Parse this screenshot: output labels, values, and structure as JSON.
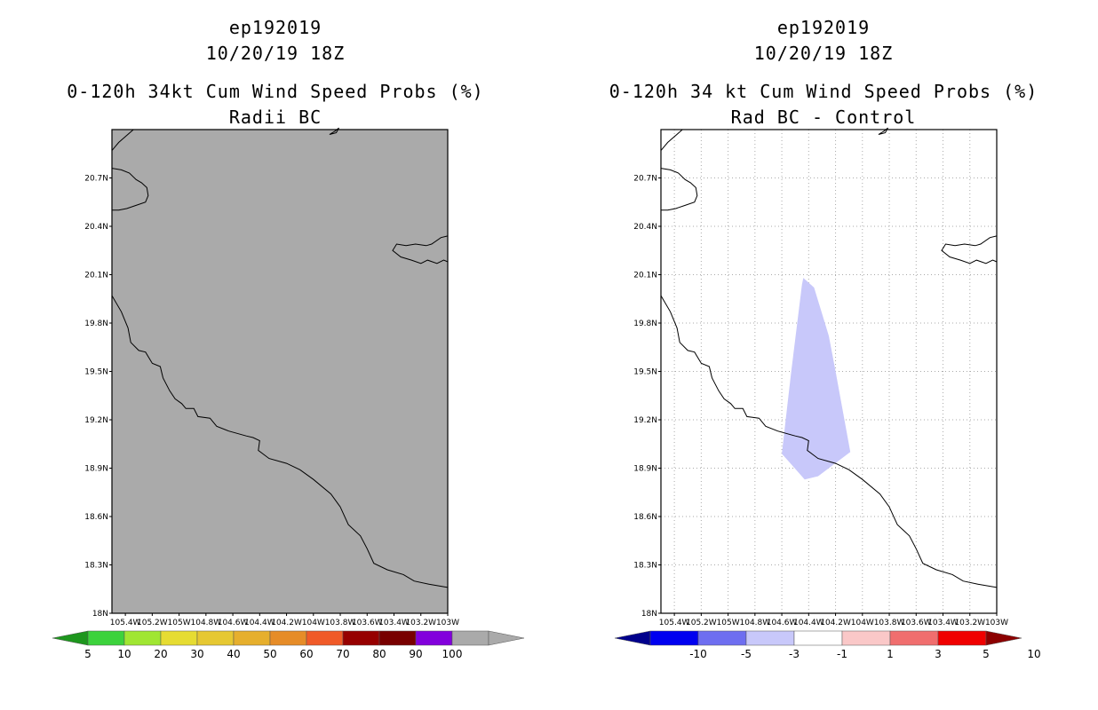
{
  "chart_data": [
    {
      "type": "heatmap",
      "storm_id": "ep192019",
      "date": "10/20/19 18Z",
      "title": "0-120h 34kt Cum Wind Speed Probs (%)",
      "subtitle": "Radii BC",
      "field": "all values below lowest contour (no probability shading)",
      "background_color": "#aaaaaa",
      "grid": false,
      "xlim": [
        -105.5,
        -103.0
      ],
      "ylim": [
        18.0,
        21.0
      ],
      "x_tick_labels": [
        "105.4W",
        "105.2W",
        "105W",
        "104.8W",
        "104.6W",
        "104.4W",
        "104.2W",
        "104W",
        "103.8W",
        "103.6W",
        "103.4W",
        "103.2W",
        "103W"
      ],
      "y_tick_labels": [
        "18N",
        "18.3N",
        "18.6N",
        "18.9N",
        "19.2N",
        "19.5N",
        "19.8N",
        "20.1N",
        "20.4N",
        "20.7N"
      ],
      "colorbar": {
        "labels": [
          "5",
          "10",
          "20",
          "30",
          "40",
          "50",
          "60",
          "70",
          "80",
          "90",
          "100"
        ],
        "colors": [
          "#1e961e",
          "#3cd23c",
          "#a0e632",
          "#e6dc32",
          "#e6c832",
          "#e6af2d",
          "#e68c28",
          "#f05a28",
          "#960000",
          "#780000",
          "#8200dc",
          "#aaaaaa",
          "#aaaaaa"
        ]
      }
    },
    {
      "type": "heatmap",
      "storm_id": "ep192019",
      "date": "10/20/19 18Z",
      "title": "0-120h 34 kt Cum Wind Speed Probs (%)",
      "subtitle": "Rad BC - Control",
      "field": "difference region between -3 and -1 percent",
      "region_fill": "#c8c8fa",
      "region_polygon_lonlat": [
        [
          -104.44,
          20.08
        ],
        [
          -104.36,
          20.02
        ],
        [
          -104.25,
          19.72
        ],
        [
          -104.2,
          19.5
        ],
        [
          -104.09,
          19.0
        ],
        [
          -104.33,
          18.85
        ],
        [
          -104.43,
          18.83
        ],
        [
          -104.6,
          18.99
        ],
        [
          -104.56,
          19.28
        ],
        [
          -104.53,
          19.5
        ],
        [
          -104.45,
          20.04
        ]
      ],
      "grid": true,
      "xlim": [
        -105.5,
        -103.0
      ],
      "ylim": [
        18.0,
        21.0
      ],
      "x_tick_labels": [
        "105.4W",
        "105.2W",
        "105W",
        "104.8W",
        "104.6W",
        "104.4W",
        "104.2W",
        "104W",
        "103.8W",
        "103.6W",
        "103.4W",
        "103.2W",
        "103W"
      ],
      "y_tick_labels": [
        "18N",
        "18.3N",
        "18.6N",
        "18.9N",
        "19.2N",
        "19.5N",
        "19.8N",
        "20.1N",
        "20.4N",
        "20.7N"
      ],
      "colorbar": {
        "labels": [
          "-10",
          "-5",
          "-3",
          "-1",
          "1",
          "3",
          "5",
          "10"
        ],
        "colors": [
          "#00008c",
          "#0000f0",
          "#6e6ef0",
          "#c8c8fa",
          "#ffffff",
          "#fac8c8",
          "#f06e6e",
          "#f00000",
          "#8c0000"
        ]
      }
    }
  ],
  "coastline_lonlat": {
    "mainland": [
      [
        -105.5,
        19.97
      ],
      [
        -105.43,
        19.87
      ],
      [
        -105.38,
        19.77
      ],
      [
        -105.36,
        19.68
      ],
      [
        -105.3,
        19.63
      ],
      [
        -105.25,
        19.62
      ],
      [
        -105.2,
        19.55
      ],
      [
        -105.14,
        19.53
      ],
      [
        -105.12,
        19.46
      ],
      [
        -105.07,
        19.38
      ],
      [
        -105.03,
        19.33
      ],
      [
        -104.98,
        19.3
      ],
      [
        -104.95,
        19.27
      ],
      [
        -104.89,
        19.27
      ],
      [
        -104.86,
        19.22
      ],
      [
        -104.77,
        19.21
      ],
      [
        -104.72,
        19.16
      ],
      [
        -104.63,
        19.13
      ],
      [
        -104.5,
        19.1
      ],
      [
        -104.45,
        19.09
      ],
      [
        -104.4,
        19.07
      ],
      [
        -104.41,
        19.01
      ],
      [
        -104.33,
        18.96
      ],
      [
        -104.2,
        18.93
      ],
      [
        -104.1,
        18.89
      ],
      [
        -104.0,
        18.83
      ],
      [
        -103.87,
        18.74
      ],
      [
        -103.8,
        18.66
      ],
      [
        -103.74,
        18.55
      ],
      [
        -103.65,
        18.48
      ],
      [
        -103.6,
        18.4
      ],
      [
        -103.55,
        18.31
      ],
      [
        -103.45,
        18.27
      ],
      [
        -103.33,
        18.24
      ],
      [
        -103.25,
        18.2
      ],
      [
        -103.14,
        18.18
      ],
      [
        -103.0,
        18.16
      ]
    ],
    "north_headland": [
      [
        -105.34,
        21.0
      ],
      [
        -105.45,
        20.92
      ],
      [
        -105.5,
        20.87
      ]
    ],
    "bay_coast": [
      [
        -105.5,
        20.76
      ],
      [
        -105.43,
        20.75
      ],
      [
        -105.37,
        20.73
      ],
      [
        -105.32,
        20.69
      ],
      [
        -105.28,
        20.67
      ],
      [
        -105.24,
        20.64
      ],
      [
        -105.23,
        20.59
      ],
      [
        -105.25,
        20.55
      ],
      [
        -105.32,
        20.53
      ],
      [
        -105.39,
        20.51
      ],
      [
        -105.45,
        20.5
      ],
      [
        -105.5,
        20.5
      ]
    ],
    "islet": [
      [
        -103.88,
        20.97
      ],
      [
        -103.83,
        20.98
      ],
      [
        -103.81,
        21.01
      ],
      [
        -103.84,
        20.99
      ],
      [
        -103.88,
        20.97
      ]
    ],
    "lake_outline": [
      [
        -103.0,
        20.34
      ],
      [
        -103.05,
        20.33
      ],
      [
        -103.12,
        20.29
      ],
      [
        -103.16,
        20.28
      ],
      [
        -103.24,
        20.29
      ],
      [
        -103.31,
        20.28
      ],
      [
        -103.38,
        20.29
      ],
      [
        -103.41,
        20.25
      ],
      [
        -103.35,
        20.21
      ],
      [
        -103.27,
        20.19
      ],
      [
        -103.2,
        20.17
      ],
      [
        -103.15,
        20.19
      ],
      [
        -103.08,
        20.17
      ],
      [
        -103.03,
        20.19
      ],
      [
        -103.0,
        20.18
      ]
    ]
  },
  "colors": {
    "frame": "#000000",
    "coast": "#000000",
    "grid": "#aaaaaa",
    "land_fill": "#aaaaaa"
  }
}
